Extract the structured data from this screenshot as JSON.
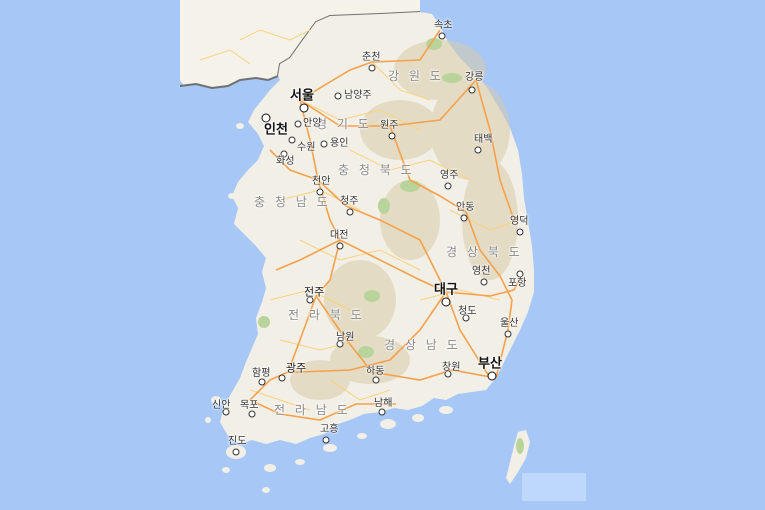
{
  "map": {
    "colors": {
      "water": "#a7c8f7",
      "land": "#f2efe6",
      "north_land": "#f5f2ea",
      "relief": "#d9cbaa",
      "forest": "#b9d49a",
      "highway": "#f5a14b",
      "road": "#fbd27e",
      "border": "#707070"
    },
    "provinces": [
      {
        "id": "gangwon",
        "label": "강 원 도"
      },
      {
        "id": "gyeonggi",
        "label": "경 기 도"
      },
      {
        "id": "chungbuk",
        "label": "충 청 북 도"
      },
      {
        "id": "chungnam",
        "label": "충 청 남 도"
      },
      {
        "id": "gyeongbuk",
        "label": "경 상 북 도"
      },
      {
        "id": "jeonbuk",
        "label": "전 라 북 도"
      },
      {
        "id": "gyeongnam",
        "label": "경 상 남 도"
      },
      {
        "id": "jeonnam",
        "label": "전 라 남 도"
      }
    ],
    "cities": [
      {
        "id": "sokcho",
        "label": "속초",
        "size": "sm"
      },
      {
        "id": "chuncheon",
        "label": "춘천",
        "size": "sm"
      },
      {
        "id": "gangneung",
        "label": "강릉",
        "size": "sm"
      },
      {
        "id": "seoul",
        "label": "서울",
        "size": "lg"
      },
      {
        "id": "namyangju",
        "label": "남양주",
        "size": "sm"
      },
      {
        "id": "incheon",
        "label": "인천",
        "size": "lg"
      },
      {
        "id": "anyang",
        "label": "안양",
        "size": "sm"
      },
      {
        "id": "wonju",
        "label": "원주",
        "size": "sm"
      },
      {
        "id": "suwon",
        "label": "수원",
        "size": "sm"
      },
      {
        "id": "yongin",
        "label": "용인",
        "size": "sm"
      },
      {
        "id": "taebaek",
        "label": "태백",
        "size": "sm"
      },
      {
        "id": "hwaseong",
        "label": "화성",
        "size": "sm"
      },
      {
        "id": "yeongju",
        "label": "영주",
        "size": "sm"
      },
      {
        "id": "cheonan",
        "label": "천안",
        "size": "sm"
      },
      {
        "id": "cheongju",
        "label": "청주",
        "size": "sm"
      },
      {
        "id": "andong",
        "label": "안동",
        "size": "sm"
      },
      {
        "id": "yeongdeok",
        "label": "영덕",
        "size": "sm"
      },
      {
        "id": "daejeon",
        "label": "대전",
        "size": "sm"
      },
      {
        "id": "yeongcheon",
        "label": "영천",
        "size": "sm"
      },
      {
        "id": "pohang",
        "label": "포항",
        "size": "sm"
      },
      {
        "id": "daegu",
        "label": "대구",
        "size": "lg"
      },
      {
        "id": "jeonju",
        "label": "전주",
        "size": "md"
      },
      {
        "id": "cheongdo",
        "label": "청도",
        "size": "sm"
      },
      {
        "id": "ulsan",
        "label": "울산",
        "size": "sm"
      },
      {
        "id": "namwon",
        "label": "남원",
        "size": "sm"
      },
      {
        "id": "busan",
        "label": "부산",
        "size": "lg"
      },
      {
        "id": "hampyeong",
        "label": "함평",
        "size": "sm"
      },
      {
        "id": "gwangju",
        "label": "광주",
        "size": "md"
      },
      {
        "id": "hadong",
        "label": "하동",
        "size": "sm"
      },
      {
        "id": "changwon",
        "label": "창원",
        "size": "sm"
      },
      {
        "id": "sinan",
        "label": "신안",
        "size": "sm"
      },
      {
        "id": "mokpo",
        "label": "목포",
        "size": "sm"
      },
      {
        "id": "namhae",
        "label": "남해",
        "size": "sm"
      },
      {
        "id": "goheung",
        "label": "고흥",
        "size": "sm"
      },
      {
        "id": "jindo",
        "label": "진도",
        "size": "sm"
      }
    ]
  }
}
